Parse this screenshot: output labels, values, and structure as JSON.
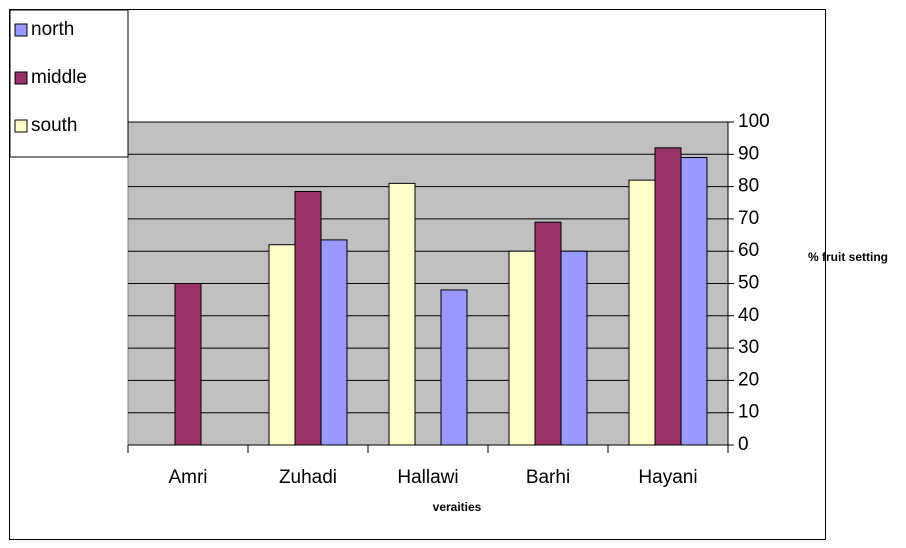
{
  "chart_data": {
    "type": "bar",
    "x_label": "veraities",
    "y_label": "% fruit setting",
    "categories": [
      "Amri",
      "Zuhadi",
      "Hallawi",
      "Barhi",
      "Hayani"
    ],
    "series": [
      {
        "name": "north",
        "color": "#9999ff",
        "values": [
          null,
          63.5,
          48,
          60,
          89
        ]
      },
      {
        "name": "middle",
        "color": "#993366",
        "values": [
          50,
          78.5,
          null,
          69,
          92
        ]
      },
      {
        "name": "south",
        "color": "#ffffcc",
        "values": [
          null,
          62,
          81,
          60,
          82
        ]
      }
    ],
    "ylim": [
      0,
      100
    ],
    "yticks": [
      0,
      10,
      20,
      30,
      40,
      50,
      60,
      70,
      80,
      90,
      100
    ],
    "grid": true,
    "legend": "upper left",
    "plot_background": "#c0c0c0"
  }
}
